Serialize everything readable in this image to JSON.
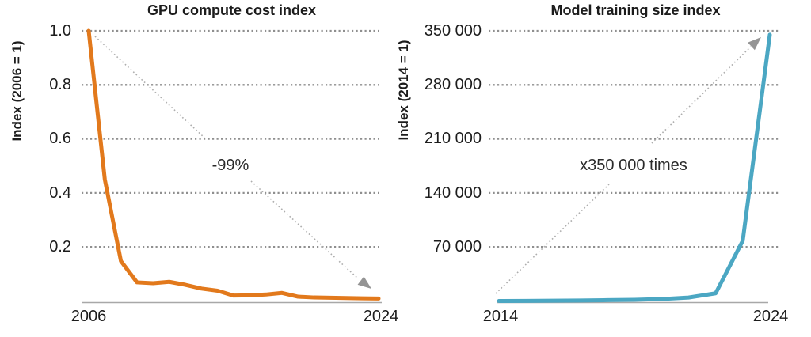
{
  "figure": {
    "background": "#FFFFFF",
    "text_color": "#1C1C1C",
    "grid_color": "#8F8F8F",
    "axis_color": "#A8A8A8",
    "arrow_color": "#ADADAD",
    "arrowhead_color": "#949494"
  },
  "chart_data": [
    {
      "type": "line",
      "title": "GPU compute cost index",
      "ylabel": "Index (2006 = 1)",
      "xlabel": "",
      "series_name": "GPU compute cost index",
      "color": "#E2791C",
      "grid": "dotted-horizontal",
      "legend": "none",
      "xlim": [
        2006,
        2024
      ],
      "ylim": [
        0,
        1.0
      ],
      "x": [
        2006,
        2007,
        2008,
        2009,
        2010,
        2011,
        2012,
        2013,
        2014,
        2015,
        2016,
        2017,
        2018,
        2019,
        2020,
        2021,
        2022,
        2023,
        2024
      ],
      "values": [
        1.0,
        0.45,
        0.148,
        0.069,
        0.066,
        0.071,
        0.06,
        0.046,
        0.038,
        0.02,
        0.021,
        0.024,
        0.03,
        0.016,
        0.013,
        0.012,
        0.011,
        0.01,
        0.009
      ],
      "y_ticks": [
        1.0,
        0.8,
        0.6,
        0.4,
        0.2
      ],
      "y_tick_labels": [
        "1.0",
        "0.8",
        "0.6",
        "0.4",
        "0.2"
      ],
      "x_tick_labels": [
        "2006",
        "2024"
      ],
      "annotation": {
        "text": "-99%",
        "arrow_direction": "down-right"
      }
    },
    {
      "type": "line",
      "title": "Model training size index",
      "ylabel": "Index (2014 = 1)",
      "xlabel": "",
      "series_name": "Model training size index",
      "color": "#4BA7C3",
      "grid": "dotted-horizontal",
      "legend": "none",
      "xlim": [
        2014,
        2024
      ],
      "ylim": [
        0,
        350000
      ],
      "x": [
        2014,
        2015,
        2016,
        2017,
        2018,
        2019,
        2020,
        2021,
        2022,
        2023,
        2024
      ],
      "values": [
        1,
        150,
        400,
        700,
        1100,
        1600,
        2500,
        4500,
        10000,
        78000,
        345000
      ],
      "y_ticks": [
        350000,
        280000,
        210000,
        140000,
        70000
      ],
      "y_tick_labels": [
        "350 000",
        "280 000",
        "210 000",
        "140 000",
        "70 000"
      ],
      "x_tick_labels": [
        "2014",
        "2024"
      ],
      "annotation": {
        "text": "x350 000 times",
        "arrow_direction": "up-right"
      }
    }
  ]
}
